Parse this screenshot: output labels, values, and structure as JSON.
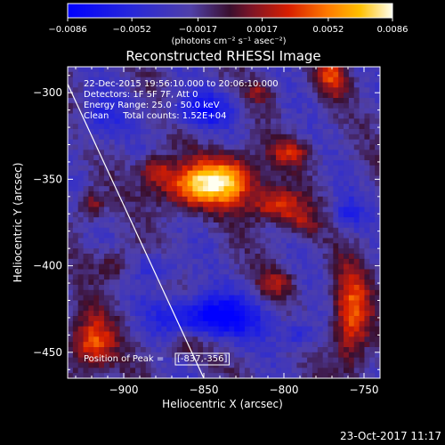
{
  "chart_data": {
    "type": "heatmap",
    "title": "Reconstructed RHESSI Image",
    "xlabel": "Heliocentric X (arcsec)",
    "ylabel": "Heliocentric Y (arcsec)",
    "xlim": [
      -935,
      -740
    ],
    "ylim": [
      -465,
      -285
    ],
    "xticks": [
      -900,
      -850,
      -800,
      -750
    ],
    "yticks": [
      -300,
      -350,
      -400,
      -450
    ],
    "colorbar": {
      "range": [
        -0.0086,
        0.0086
      ],
      "ticks": [
        -0.0086,
        -0.0052,
        -0.0017,
        0.0017,
        0.0052,
        0.0086
      ],
      "tick_labels": [
        "-0.0086",
        "-0.0052",
        "-0.0017",
        "0.0017",
        "0.0052",
        "0.0086"
      ],
      "units_label": "(photons cm⁻² s⁻¹ asec⁻²)"
    },
    "annotations": [
      "22-Dec-2015 19:56:10.000 to 20:06:10.000",
      "Detectors: 1F 5F 7F, Att 0",
      "Energy Range: 25.0 - 50.0 keV",
      "Clean     Total counts: 1.52E+04"
    ],
    "peak": {
      "label": "Position of Peak = ",
      "value": "[-837,-356]",
      "x": -837,
      "y": -356
    },
    "sources": [
      {
        "x": -835,
        "y": -350,
        "sx": 14,
        "sy": 10,
        "amp": 0.0086
      },
      {
        "x": -860,
        "y": -355,
        "sx": 14,
        "sy": 9,
        "amp": 0.0065
      },
      {
        "x": -805,
        "y": -365,
        "sx": 11,
        "sy": 7,
        "amp": 0.006
      },
      {
        "x": -880,
        "y": -345,
        "sx": 7,
        "sy": 6,
        "amp": 0.005
      },
      {
        "x": -795,
        "y": -335,
        "sx": 9,
        "sy": 5,
        "amp": 0.0045
      },
      {
        "x": -770,
        "y": -290,
        "sx": 7,
        "sy": 9,
        "amp": 0.005
      },
      {
        "x": -815,
        "y": -300,
        "sx": 6,
        "sy": 5,
        "amp": 0.003
      },
      {
        "x": -920,
        "y": -365,
        "sx": 6,
        "sy": 6,
        "amp": 0.0042
      },
      {
        "x": -905,
        "y": -400,
        "sx": 9,
        "sy": 7,
        "amp": 0.0034
      },
      {
        "x": -920,
        "y": -445,
        "sx": 10,
        "sy": 12,
        "amp": 0.0065
      },
      {
        "x": -862,
        "y": -445,
        "sx": 9,
        "sy": 6,
        "amp": 0.0035
      },
      {
        "x": -805,
        "y": -410,
        "sx": 8,
        "sy": 6,
        "amp": 0.0036
      },
      {
        "x": -758,
        "y": -430,
        "sx": 8,
        "sy": 20,
        "amp": 0.0068
      },
      {
        "x": -790,
        "y": -375,
        "sx": 8,
        "sy": 6,
        "amp": 0.0032
      },
      {
        "x": -845,
        "y": -430,
        "sx": 22,
        "sy": 9,
        "amp": -0.0072
      },
      {
        "x": -850,
        "y": -310,
        "sx": 15,
        "sy": 7,
        "amp": -0.0045
      },
      {
        "x": -790,
        "y": -440,
        "sx": 8,
        "sy": 6,
        "amp": -0.0035
      },
      {
        "x": -915,
        "y": -315,
        "sx": 10,
        "sy": 10,
        "amp": -0.003
      },
      {
        "x": -880,
        "y": -400,
        "sx": 12,
        "sy": 6,
        "amp": -0.003
      },
      {
        "x": -760,
        "y": -370,
        "sx": 7,
        "sy": 7,
        "amp": -0.003
      }
    ],
    "limb_line": [
      [
        -935,
        -295
      ],
      [
        -850,
        -465
      ]
    ]
  },
  "timestamp": "23-Oct-2017 11:17"
}
